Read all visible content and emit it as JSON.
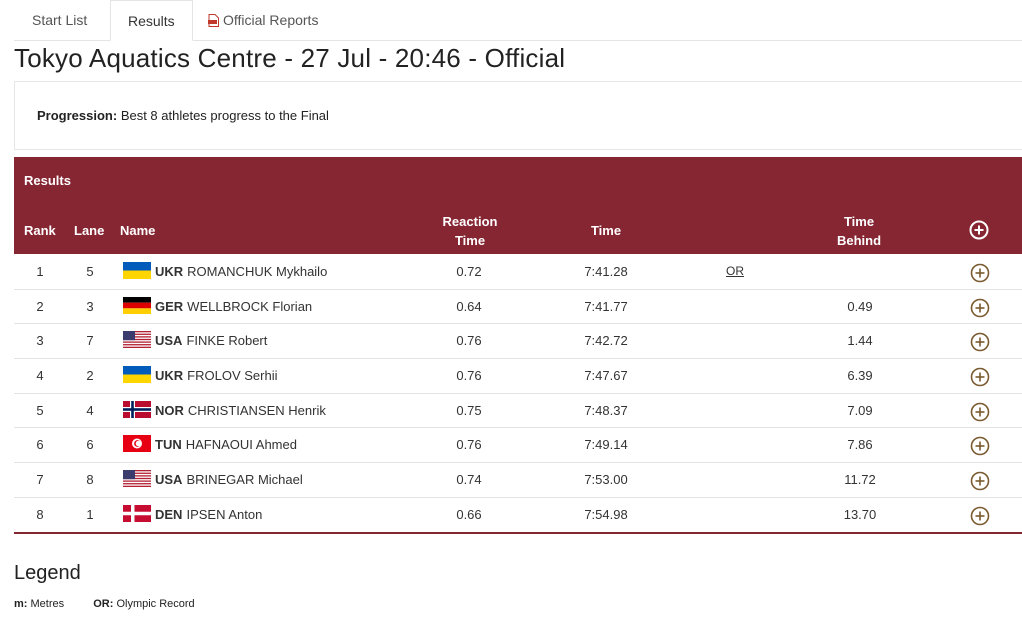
{
  "tabs": [
    {
      "label": "Start List"
    },
    {
      "label": "Results"
    },
    {
      "label": "Official Reports",
      "icon": "pdf-icon"
    }
  ],
  "page_title": "Tokyo Aquatics Centre - 27 Jul - 20:46 - Official",
  "progression": {
    "label": "Progression:",
    "text": "Best 8 athletes progress to the Final"
  },
  "results": {
    "section_label": "Results",
    "columns": {
      "rank": "Rank",
      "lane": "Lane",
      "name": "Name",
      "reaction_1": "Reaction",
      "reaction_2": "Time",
      "time": "Time",
      "behind_1": "Time",
      "behind_2": "Behind"
    },
    "rows": [
      {
        "rank": "1",
        "lane": "5",
        "noc": "UKR",
        "name": "ROMANCHUK Mykhailo",
        "reaction": "0.72",
        "time": "7:41.28",
        "record": "OR",
        "behind": ""
      },
      {
        "rank": "2",
        "lane": "3",
        "noc": "GER",
        "name": "WELLBROCK Florian",
        "reaction": "0.64",
        "time": "7:41.77",
        "record": "",
        "behind": "0.49"
      },
      {
        "rank": "3",
        "lane": "7",
        "noc": "USA",
        "name": "FINKE Robert",
        "reaction": "0.76",
        "time": "7:42.72",
        "record": "",
        "behind": "1.44"
      },
      {
        "rank": "4",
        "lane": "2",
        "noc": "UKR",
        "name": "FROLOV Serhii",
        "reaction": "0.76",
        "time": "7:47.67",
        "record": "",
        "behind": "6.39"
      },
      {
        "rank": "5",
        "lane": "4",
        "noc": "NOR",
        "name": "CHRISTIANSEN Henrik",
        "reaction": "0.75",
        "time": "7:48.37",
        "record": "",
        "behind": "7.09"
      },
      {
        "rank": "6",
        "lane": "6",
        "noc": "TUN",
        "name": "HAFNAOUI Ahmed",
        "reaction": "0.76",
        "time": "7:49.14",
        "record": "",
        "behind": "7.86"
      },
      {
        "rank": "7",
        "lane": "8",
        "noc": "USA",
        "name": "BRINEGAR Michael",
        "reaction": "0.74",
        "time": "7:53.00",
        "record": "",
        "behind": "11.72"
      },
      {
        "rank": "8",
        "lane": "1",
        "noc": "DEN",
        "name": "IPSEN Anton",
        "reaction": "0.66",
        "time": "7:54.98",
        "record": "",
        "behind": "13.70"
      }
    ]
  },
  "legend": {
    "title": "Legend",
    "items": [
      {
        "abbr": "m:",
        "text": "Metres"
      },
      {
        "abbr": "OR:",
        "text": "Olympic Record"
      }
    ]
  },
  "colors": {
    "header_bg": "#862633",
    "expand_icon": "#7a5a2e"
  }
}
